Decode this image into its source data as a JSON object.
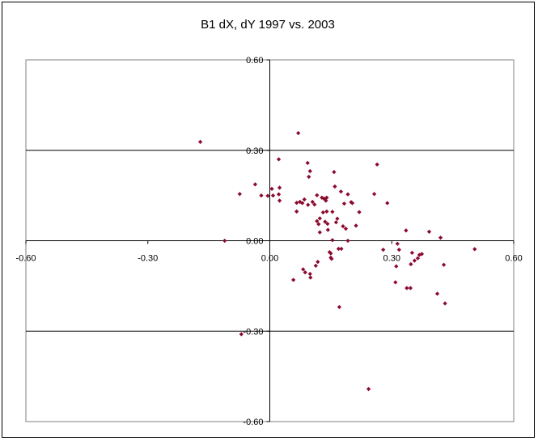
{
  "chart_data": {
    "type": "scatter",
    "title": "B1 dX, dY 1997 vs. 2003",
    "xlabel": "",
    "ylabel": "",
    "xlim": [
      -0.6,
      0.6
    ],
    "ylim": [
      -0.6,
      0.6
    ],
    "x_ticks": [
      "-0.60",
      "-0.30",
      "0.00",
      "0.30",
      "0.60"
    ],
    "y_ticks": [
      "0.60",
      "0.30",
      "0.00",
      "-0.30",
      "-0.60"
    ],
    "x_tick_values": [
      -0.6,
      -0.3,
      0.0,
      0.3,
      0.6
    ],
    "y_tick_values": [
      0.6,
      0.3,
      0.0,
      -0.3,
      -0.6
    ],
    "grid": "horizontal major gridlines",
    "legend": "none",
    "marker_color": "#8B0A2E",
    "series": [
      {
        "points": [
          [
            -0.171,
            0.328
          ],
          [
            -0.111,
            0.0
          ],
          [
            -0.074,
            0.155
          ],
          [
            -0.07,
            -0.31
          ],
          [
            -0.036,
            0.187
          ],
          [
            -0.021,
            0.15
          ],
          [
            -0.005,
            0.149
          ],
          [
            0.008,
            0.15
          ],
          [
            0.005,
            0.172
          ],
          [
            0.022,
            0.27
          ],
          [
            0.024,
            0.176
          ],
          [
            0.022,
            0.154
          ],
          [
            0.024,
            0.133
          ],
          [
            0.058,
            -0.13
          ],
          [
            0.066,
            0.097
          ],
          [
            0.066,
            0.126
          ],
          [
            0.07,
            0.357
          ],
          [
            0.074,
            0.129
          ],
          [
            0.08,
            0.125
          ],
          [
            0.085,
            0.137
          ],
          [
            0.082,
            -0.095
          ],
          [
            0.087,
            -0.105
          ],
          [
            0.093,
            0.258
          ],
          [
            0.094,
            0.119
          ],
          [
            0.096,
            0.212
          ],
          [
            0.099,
            0.231
          ],
          [
            0.099,
            -0.11
          ],
          [
            0.1,
            -0.122
          ],
          [
            0.105,
            0.129
          ],
          [
            0.11,
            0.12
          ],
          [
            0.113,
            -0.083
          ],
          [
            0.116,
            0.151
          ],
          [
            0.116,
            0.065
          ],
          [
            0.118,
            -0.07
          ],
          [
            0.12,
            0.055
          ],
          [
            0.123,
            0.028
          ],
          [
            0.123,
            0.074
          ],
          [
            0.128,
            0.143
          ],
          [
            0.131,
            0.094
          ],
          [
            0.133,
            0.14
          ],
          [
            0.136,
            0.063
          ],
          [
            0.138,
            0.133
          ],
          [
            0.14,
            0.143
          ],
          [
            0.14,
            0.097
          ],
          [
            0.142,
            0.056
          ],
          [
            0.143,
            0.036
          ],
          [
            0.147,
            -0.038
          ],
          [
            0.15,
            -0.042
          ],
          [
            0.15,
            -0.056
          ],
          [
            0.152,
            -0.06
          ],
          [
            0.154,
            0.096
          ],
          [
            0.154,
            0.002
          ],
          [
            0.158,
            0.228
          ],
          [
            0.16,
            0.18
          ],
          [
            0.163,
            0.061
          ],
          [
            0.166,
            0.073
          ],
          [
            0.169,
            -0.027
          ],
          [
            0.171,
            -0.22
          ],
          [
            0.175,
            0.163
          ],
          [
            0.176,
            -0.027
          ],
          [
            0.18,
            0.048
          ],
          [
            0.183,
            0.123
          ],
          [
            0.187,
            0.04
          ],
          [
            0.192,
            0.154
          ],
          [
            0.192,
            0.0
          ],
          [
            0.2,
            0.128
          ],
          [
            0.203,
            0.125
          ],
          [
            0.212,
            0.05
          ],
          [
            0.22,
            0.095
          ],
          [
            0.243,
            -0.492
          ],
          [
            0.257,
            0.155
          ],
          [
            0.264,
            0.253
          ],
          [
            0.279,
            -0.03
          ],
          [
            0.289,
            0.125
          ],
          [
            0.309,
            -0.138
          ],
          [
            0.311,
            -0.085
          ],
          [
            0.314,
            -0.01
          ],
          [
            0.318,
            -0.03
          ],
          [
            0.335,
            0.034
          ],
          [
            0.337,
            -0.157
          ],
          [
            0.346,
            -0.157
          ],
          [
            0.347,
            -0.078
          ],
          [
            0.35,
            -0.04
          ],
          [
            0.356,
            -0.066
          ],
          [
            0.364,
            -0.058
          ],
          [
            0.368,
            -0.047
          ],
          [
            0.374,
            -0.044
          ],
          [
            0.392,
            0.03
          ],
          [
            0.412,
            -0.176
          ],
          [
            0.42,
            0.01
          ],
          [
            0.428,
            -0.08
          ],
          [
            0.431,
            -0.208
          ],
          [
            0.504,
            -0.028
          ]
        ]
      }
    ]
  }
}
